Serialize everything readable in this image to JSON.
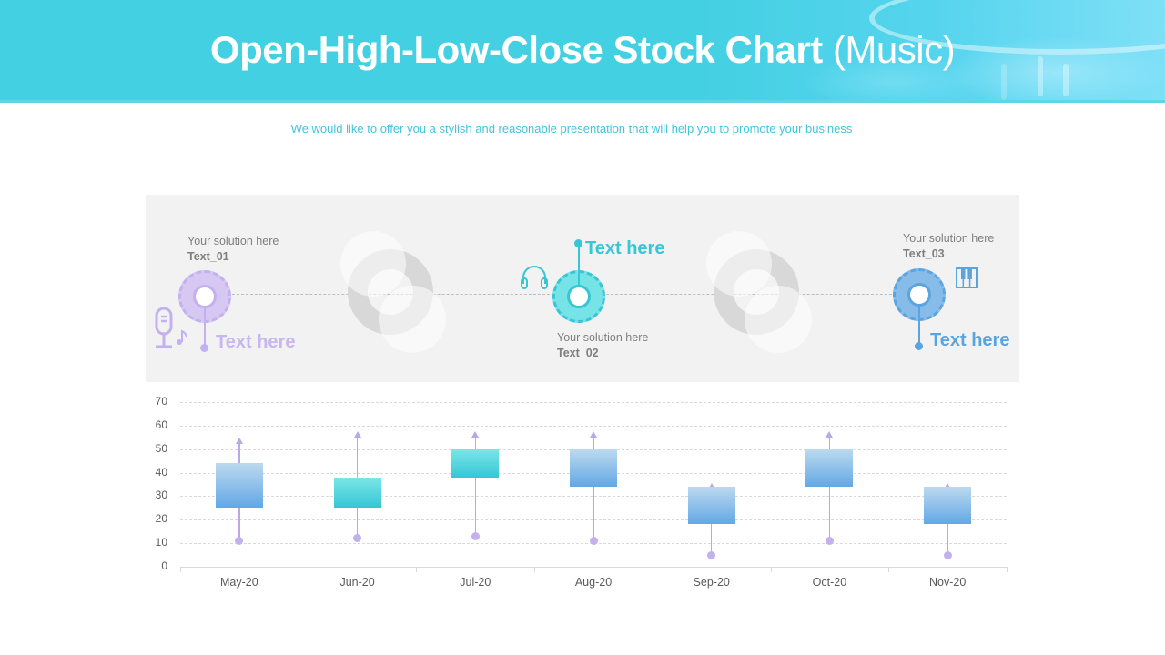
{
  "header": {
    "title_bold": "Open-High-Low-Close Stock Chart",
    "title_light": "(Music)",
    "subtitle": "We would like to offer you a stylish and reasonable presentation that will help you to promote your business"
  },
  "infographic": {
    "items": [
      {
        "solution": "Your solution here",
        "label": "Text_01",
        "callout": "Text here",
        "color": "#c3b1ef",
        "ring_color": "#d6c8f3",
        "icon": "microphone-icon"
      },
      {
        "solution": "Your solution here",
        "label": "Text_02",
        "callout": "Text here",
        "color": "#36c6d6",
        "ring_color": "#76e3e6",
        "icon": "headphones-icon"
      },
      {
        "solution": "Your solution here",
        "label": "Text_03",
        "callout": "Text here",
        "color": "#5aa5e0",
        "ring_color": "#87bbe8",
        "icon": "piano-keys-icon"
      }
    ]
  },
  "colors": {
    "accent_teal": "#44d0e3",
    "purple": "#c3b1ef",
    "teal": "#36c6d6",
    "blue": "#5aa5e0",
    "wick": "#b9a8e8"
  },
  "chart_data": {
    "type": "ohlc",
    "title": "Open-High-Low-Close Stock Chart (Music)",
    "xlabel": "",
    "ylabel": "",
    "ylim": [
      0,
      70
    ],
    "yticks": [
      0,
      10,
      20,
      30,
      40,
      50,
      60,
      70
    ],
    "grid": true,
    "legend": "none",
    "categories": [
      "May-20",
      "Jun-20",
      "Jul-20",
      "Aug-20",
      "Sep-20",
      "Oct-20",
      "Nov-20"
    ],
    "series": [
      {
        "name": "Open",
        "values": [
          44,
          25,
          38,
          50,
          34,
          50,
          34
        ]
      },
      {
        "name": "High",
        "values": [
          54,
          57,
          57,
          57,
          35,
          57,
          35
        ]
      },
      {
        "name": "Low",
        "values": [
          11,
          12,
          13,
          11,
          5,
          11,
          5
        ]
      },
      {
        "name": "Close",
        "values": [
          25,
          38,
          50,
          34,
          18,
          34,
          18
        ]
      }
    ],
    "box_style": [
      "down",
      "up",
      "up",
      "down",
      "down",
      "down",
      "down"
    ]
  }
}
